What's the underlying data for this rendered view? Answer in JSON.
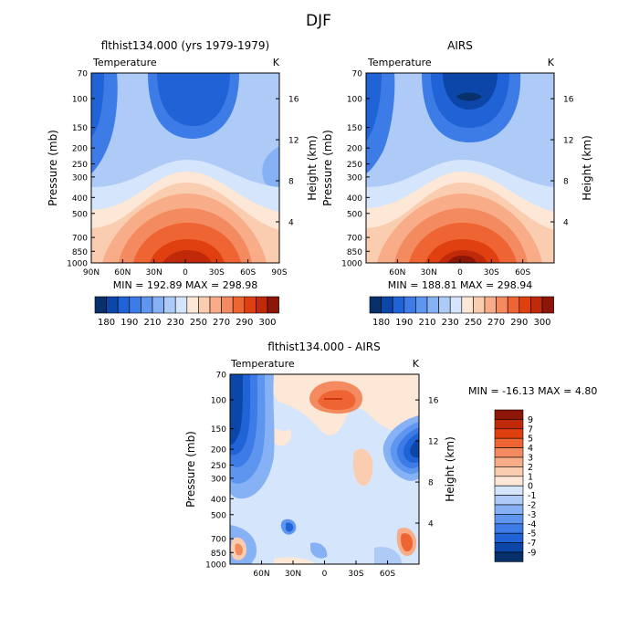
{
  "figure": {
    "title": "DJF"
  },
  "chart_data": [
    {
      "type": "heatmap",
      "title": "flthist134.000 (yrs 1979-1979)",
      "subtitle_left": "Temperature",
      "subtitle_right": "K",
      "ylabel": "Pressure (mb)",
      "ylabel_right": "Height (km)",
      "x_ticks": [
        "90N",
        "60N",
        "30N",
        "0",
        "30S",
        "60S",
        "90S"
      ],
      "y_ticks": [
        "70",
        "100",
        "150",
        "200",
        "250",
        "300",
        "400",
        "500",
        "700",
        "850",
        "1000"
      ],
      "height_ticks": [
        "16",
        "12",
        "8",
        "4"
      ],
      "stats": "MIN = 192.89   MAX = 298.98",
      "colorbar_labels": [
        "180",
        "190",
        "210",
        "230",
        "250",
        "270",
        "290",
        "300"
      ],
      "colors": [
        "#08306b",
        "#0b46a8",
        "#1f63d6",
        "#3d7be6",
        "#5e96ef",
        "#86b2f5",
        "#aecbf7",
        "#d5e5fb",
        "#fde7d6",
        "#fbcdb0",
        "#f8ad88",
        "#f48a5f",
        "#ee6432",
        "#e04010",
        "#c02a0a",
        "#8e1608"
      ]
    },
    {
      "type": "heatmap",
      "title": "AIRS",
      "subtitle_left": "Temperature",
      "subtitle_right": "K",
      "ylabel": "Pressure (mb)",
      "ylabel_right": "Height (km)",
      "x_ticks": [
        "60N",
        "30N",
        "0",
        "30S",
        "60S"
      ],
      "y_ticks": [
        "70",
        "100",
        "150",
        "200",
        "250",
        "300",
        "400",
        "500",
        "700",
        "850",
        "1000"
      ],
      "height_ticks": [
        "16",
        "12",
        "8",
        "4"
      ],
      "stats": "MIN = 188.81   MAX = 298.94",
      "colorbar_labels": [
        "180",
        "190",
        "210",
        "230",
        "250",
        "270",
        "290",
        "300"
      ],
      "colors": [
        "#08306b",
        "#0b46a8",
        "#1f63d6",
        "#3d7be6",
        "#5e96ef",
        "#86b2f5",
        "#aecbf7",
        "#d5e5fb",
        "#fde7d6",
        "#fbcdb0",
        "#f8ad88",
        "#f48a5f",
        "#ee6432",
        "#e04010",
        "#c02a0a",
        "#8e1608"
      ]
    },
    {
      "type": "heatmap",
      "title": "flthist134.000 - AIRS",
      "subtitle_left": "Temperature",
      "subtitle_right": "K",
      "ylabel": "Pressure (mb)",
      "ylabel_right": "Height (km)",
      "x_ticks": [
        "60N",
        "30N",
        "0",
        "30S",
        "60S"
      ],
      "y_ticks": [
        "70",
        "100",
        "150",
        "200",
        "250",
        "300",
        "400",
        "500",
        "700",
        "850",
        "1000"
      ],
      "height_ticks": [
        "16",
        "12",
        "8",
        "4"
      ],
      "stats": "MIN = -16.13   MAX =    4.80",
      "colorbar_labels": [
        "9",
        "7",
        "5",
        "4",
        "3",
        "2",
        "1",
        "0",
        "-1",
        "-2",
        "-3",
        "-4",
        "-5",
        "-7",
        "-9"
      ],
      "colors": [
        "#8e1608",
        "#c02a0a",
        "#e04010",
        "#ee6432",
        "#f48a5f",
        "#f8ad88",
        "#fbcdb0",
        "#fde7d6",
        "#d5e5fb",
        "#aecbf7",
        "#86b2f5",
        "#5e96ef",
        "#3d7be6",
        "#1f63d6",
        "#0b46a8",
        "#08306b"
      ]
    }
  ]
}
